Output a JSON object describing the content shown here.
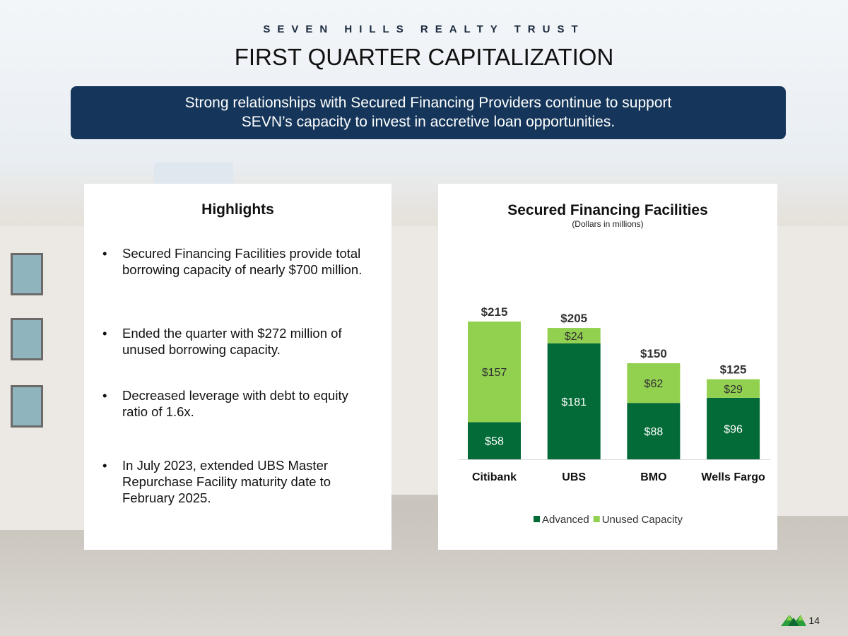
{
  "brand": "SEVEN HILLS REALTY TRUST",
  "title": "FIRST QUARTER CAPITALIZATION",
  "banner": {
    "line1": "Strong relationships with Secured Financing Providers continue to support",
    "line2": "SEVN’s capacity to invest in accretive loan opportunities."
  },
  "highlights": {
    "title": "Highlights",
    "items": [
      "Secured Financing Facilities provide total borrowing capacity of nearly $700 million.",
      "Ended the quarter with $272 million of unused borrowing capacity.",
      "Decreased leverage with debt to equity ratio of 1.6x.",
      "In July 2023, extended UBS Master Repurchase Facility maturity date to February 2025."
    ]
  },
  "page_number": "14",
  "chart_data": {
    "type": "bar",
    "stacked": true,
    "title": "Secured Financing Facilities",
    "subtitle": "(Dollars in millions)",
    "categories": [
      "Citibank",
      "UBS",
      "BMO",
      "Wells Fargo"
    ],
    "series": [
      {
        "name": "Advanced",
        "values": [
          58,
          181,
          88,
          96
        ],
        "labels": [
          "$58",
          "$181",
          "$88",
          "$96"
        ],
        "color": "#036b37"
      },
      {
        "name": "Unused Capacity",
        "values": [
          157,
          24,
          62,
          29
        ],
        "labels": [
          "$157",
          "$24",
          "$62",
          "$29"
        ],
        "color": "#92d050"
      }
    ],
    "totals": [
      "$215",
      "$205",
      "$150",
      "$125"
    ],
    "legend": "bottom",
    "ylim": [
      0,
      215
    ]
  }
}
